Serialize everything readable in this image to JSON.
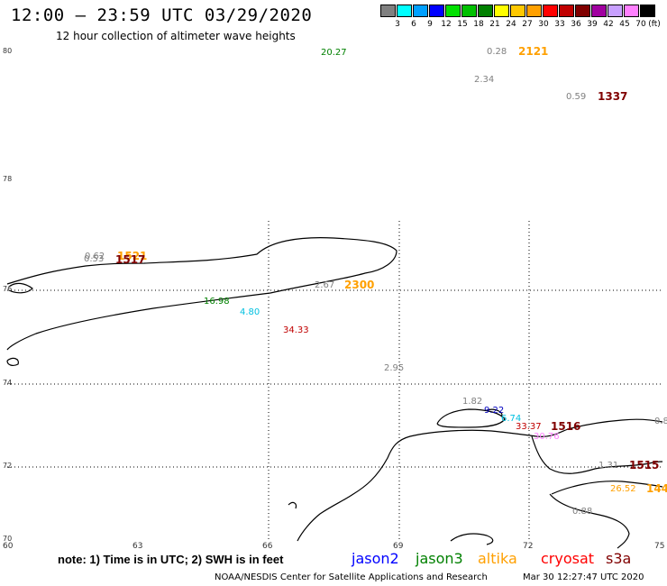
{
  "title": "12:00 — 23:59 UTC 03/29/2020",
  "subtitle": "12 hour collection of altimeter wave heights",
  "legend": {
    "unit": "(ft)",
    "colors": [
      "#808080",
      "#00ffff",
      "#00a0ff",
      "#0000ff",
      "#00e000",
      "#00c000",
      "#008000",
      "#ffff00",
      "#ffc800",
      "#ffa000",
      "#ff0000",
      "#c00000",
      "#800000",
      "#a000a0",
      "#c8a0ff",
      "#ff80ff",
      "#000000"
    ],
    "labels": [
      "3",
      "6",
      "9",
      "12",
      "15",
      "18",
      "21",
      "24",
      "27",
      "30",
      "33",
      "36",
      "39",
      "42",
      "45",
      "70"
    ]
  },
  "lat_labels": [
    {
      "text": "80"
    },
    {
      "text": "78"
    },
    {
      "text": "76"
    },
    {
      "text": "74"
    },
    {
      "text": "72"
    },
    {
      "text": "70"
    }
  ],
  "lon_labels": [
    {
      "text": "60"
    },
    {
      "text": "63"
    },
    {
      "text": "66"
    },
    {
      "text": "69"
    },
    {
      "text": "72"
    },
    {
      "text": "75"
    }
  ],
  "observations": [
    {
      "text": "20.27",
      "color": "#008000"
    },
    {
      "text": "0.28",
      "color": "#808080"
    },
    {
      "text": "2121",
      "color": "#ffa000"
    },
    {
      "text": "2.34",
      "color": "#808080"
    },
    {
      "text": "0.59",
      "color": "#808080"
    },
    {
      "text": "1337",
      "color": "#800000"
    },
    {
      "text": "0.62",
      "color": "#808080"
    },
    {
      "text": "0.53",
      "color": "#808080"
    },
    {
      "text": "1521",
      "color": "#ffa000"
    },
    {
      "text": "1517",
      "color": "#800000"
    },
    {
      "text": "16.98",
      "color": "#008000"
    },
    {
      "text": "2.67",
      "color": "#808080"
    },
    {
      "text": "2300",
      "color": "#ffa000"
    },
    {
      "text": "4.80",
      "color": "#00c0e0"
    },
    {
      "text": "34.33",
      "color": "#c00000"
    },
    {
      "text": "2.95",
      "color": "#808080"
    },
    {
      "text": "1.82",
      "color": "#808080"
    },
    {
      "text": "9.22",
      "color": "#0000c0"
    },
    {
      "text": "6.74",
      "color": "#00c0e0"
    },
    {
      "text": "33.37",
      "color": "#c00000"
    },
    {
      "text": "1516",
      "color": "#800000"
    },
    {
      "text": "30.76",
      "color": "#ff80ff"
    },
    {
      "text": "0.8",
      "color": "#808080"
    },
    {
      "text": "1.31",
      "color": "#808080"
    },
    {
      "text": "1515",
      "color": "#800000"
    },
    {
      "text": "26.52",
      "color": "#ffa000"
    },
    {
      "text": "144",
      "color": "#ffa000"
    },
    {
      "text": "0.88",
      "color": "#808080"
    }
  ],
  "note": "note: 1) Time is in UTC; 2) SWH is in feet",
  "missions": [
    {
      "text": "jason2",
      "color": "#0000ff"
    },
    {
      "text": "jason3",
      "color": "#008000"
    },
    {
      "text": "altika",
      "color": "#ffa000"
    },
    {
      "text": "cryosat",
      "color": "#ff0000"
    },
    {
      "text": "s3a",
      "color": "#800000"
    }
  ],
  "credit": "NOAA/NESDIS Center for Satellite Applications and Research",
  "timestamp": "Mar 30 12:27:47 UTC 2020"
}
